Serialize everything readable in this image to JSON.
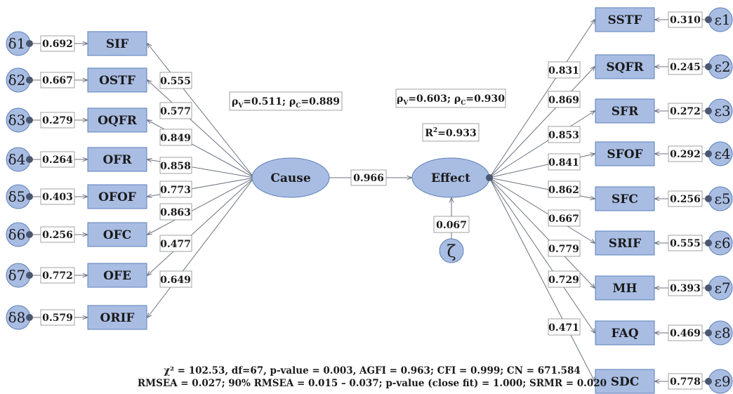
{
  "colors": {
    "box_fill": "#a9bde3",
    "box_stroke": "#5b7fb8",
    "dot": "#4b5670",
    "arrow": "#6b7280"
  },
  "latent": {
    "cause": "Cause",
    "effect": "Effect",
    "path_cause_effect": "0.966",
    "zeta_symbol": "ζ",
    "zeta_loading": "0.067"
  },
  "cause_stats": {
    "rho_v": "0.511",
    "rho_c": "0.889"
  },
  "effect_stats": {
    "rho_v": "0.603",
    "rho_c": "0.930",
    "r2": "0.933"
  },
  "cause_indicators": [
    {
      "err": "δ1",
      "err_val": "0.692",
      "label": "SIF",
      "loading": "0.555"
    },
    {
      "err": "δ2",
      "err_val": "0.667",
      "label": "OSTF",
      "loading": "0.577"
    },
    {
      "err": "δ3",
      "err_val": "0.279",
      "label": "OQFR",
      "loading": "0.849"
    },
    {
      "err": "δ4",
      "err_val": "0.264",
      "label": "OFR",
      "loading": "0.858"
    },
    {
      "err": "δ5",
      "err_val": "0.403",
      "label": "OFOF",
      "loading": "0.773"
    },
    {
      "err": "δ6",
      "err_val": "0.256",
      "label": "OFC",
      "loading": "0.863"
    },
    {
      "err": "δ7",
      "err_val": "0.772",
      "label": "OFE",
      "loading": "0.477"
    },
    {
      "err": "δ8",
      "err_val": "0.579",
      "label": "ORIF",
      "loading": "0.649"
    }
  ],
  "effect_indicators": [
    {
      "err": "ε1",
      "err_val": "0.310",
      "label": "SSTF",
      "loading": "0.831"
    },
    {
      "err": "ε2",
      "err_val": "0.245",
      "label": "SQFR",
      "loading": "0.869"
    },
    {
      "err": "ε3",
      "err_val": "0.272",
      "label": "SFR",
      "loading": "0.853"
    },
    {
      "err": "ε4",
      "err_val": "0.292",
      "label": "SFOF",
      "loading": "0.841"
    },
    {
      "err": "ε5",
      "err_val": "0.256",
      "label": "SFC",
      "loading": "0.862"
    },
    {
      "err": "ε6",
      "err_val": "0.555",
      "label": "SRIF",
      "loading": "0.667"
    },
    {
      "err": "ε7",
      "err_val": "0.393",
      "label": "MH",
      "loading": "0.779"
    },
    {
      "err": "ε8",
      "err_val": "0.469",
      "label": "FAQ",
      "loading": "0.729"
    },
    {
      "err": "ε9",
      "err_val": "0.778",
      "label": "SDC",
      "loading": "0.471"
    }
  ],
  "fit": {
    "line1": "χ² = 102.53, df=67, p-value = 0.003, AGFI = 0.963; CFI = 0.999; CN = 671.584",
    "line2": "RMSEA = 0.027; 90% RMSEA = 0.015 – 0.037; p-value (close fit) = 1.000; SRMR = 0.020"
  }
}
